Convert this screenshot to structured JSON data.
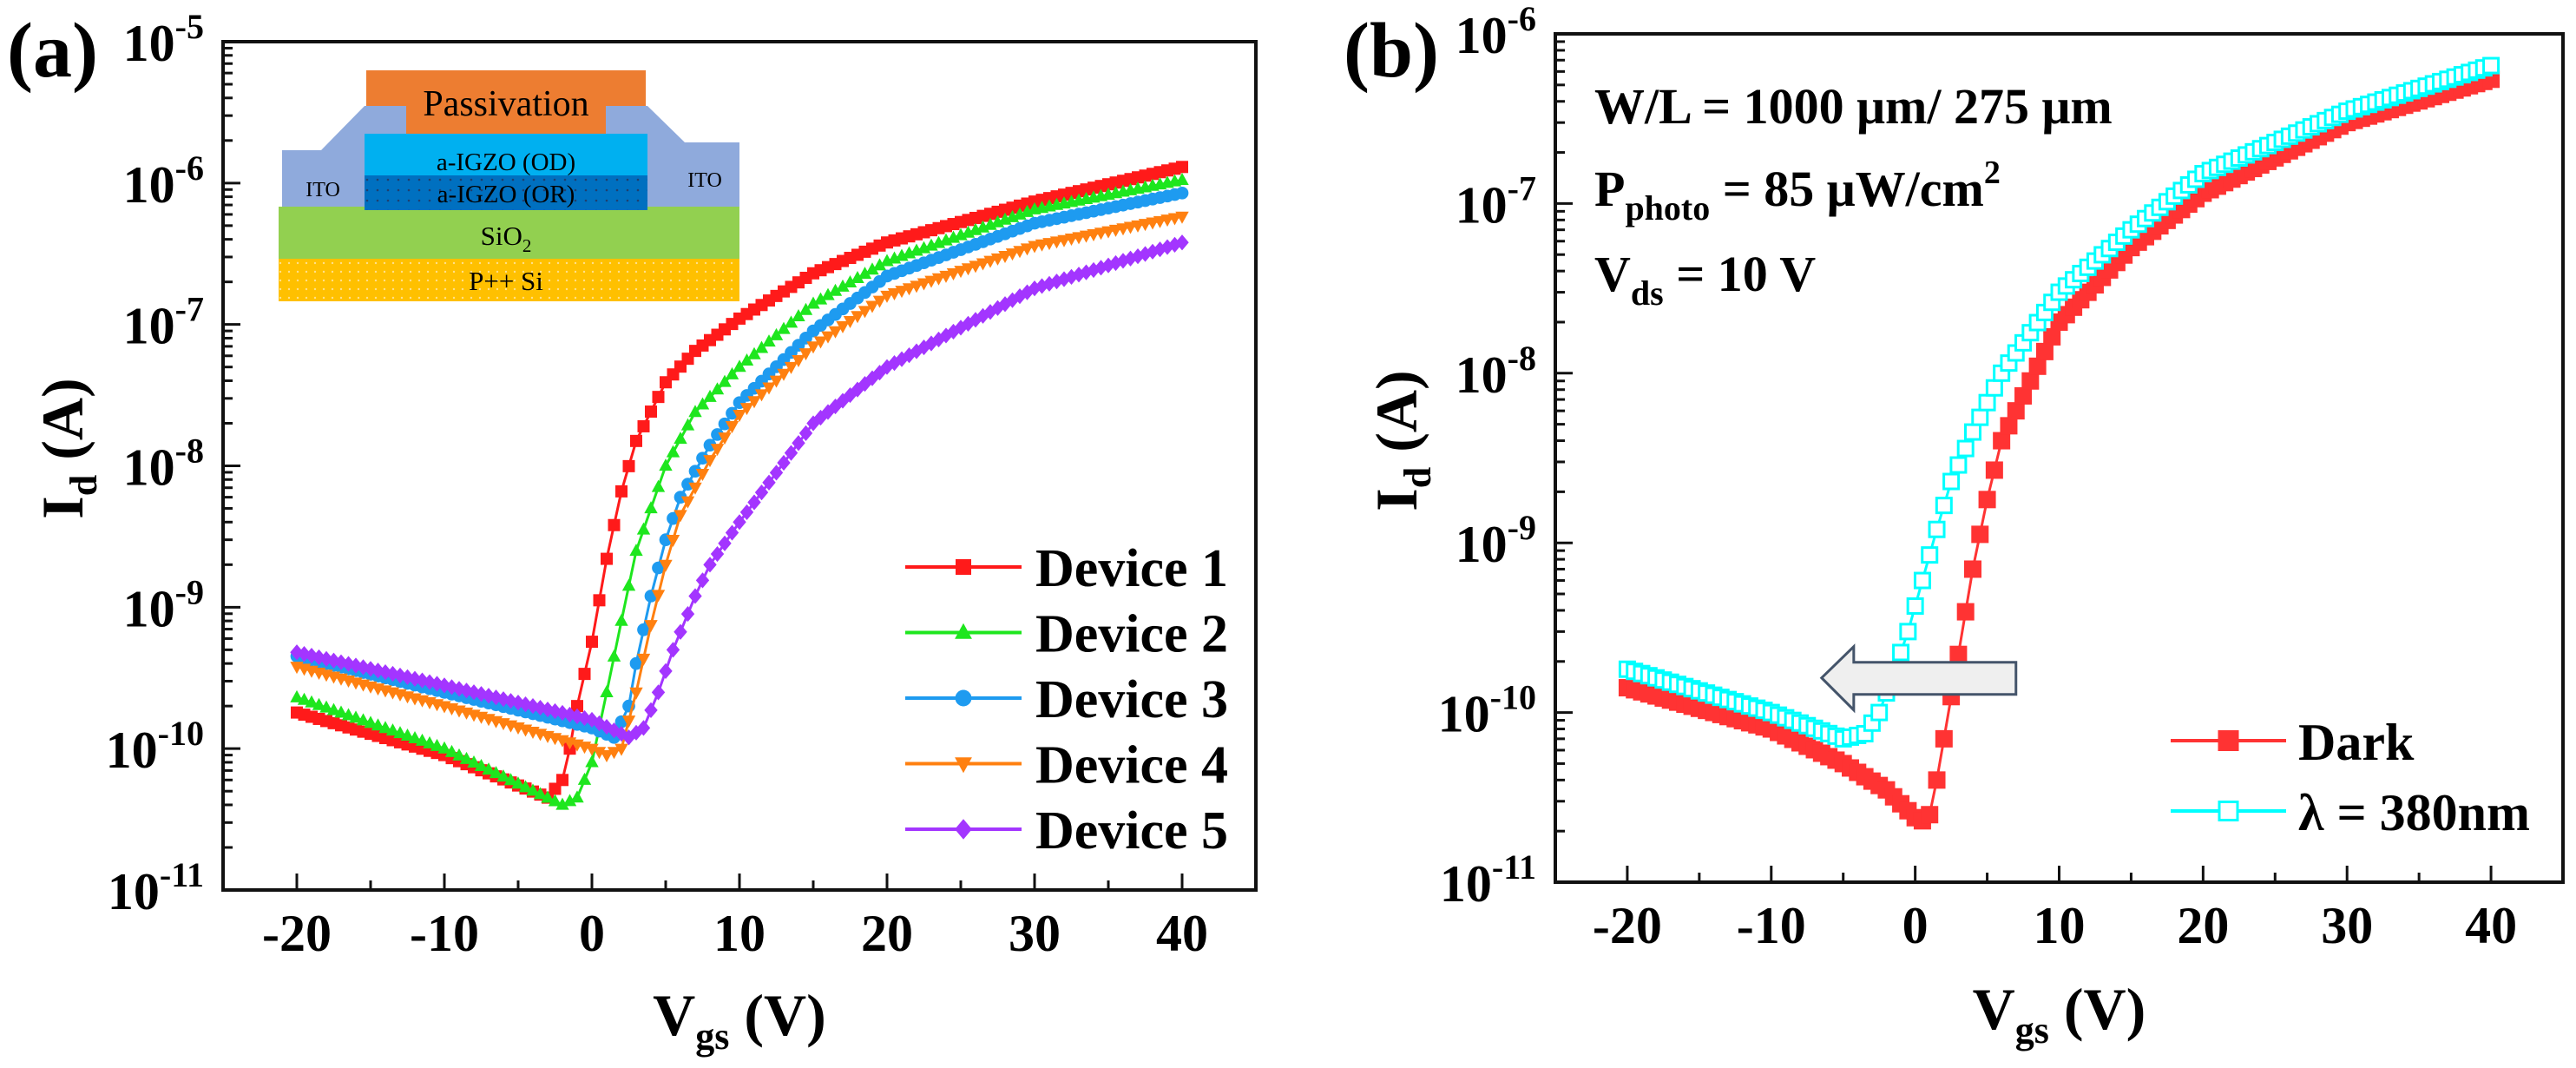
{
  "chart_data": [
    {
      "type": "scatter",
      "panel_label": "(a)",
      "title": "",
      "xlabel": {
        "main": "V",
        "sub": "gs",
        "rest": " (V)"
      },
      "ylabel": {
        "main": "I",
        "sub": "d",
        "rest": " (A)"
      },
      "xscale": "linear",
      "yscale": "log",
      "xlim": [
        -25,
        45
      ],
      "ylim_exponents": [
        -11,
        -5
      ],
      "xticks": [
        -20,
        -10,
        0,
        10,
        20,
        30,
        40
      ],
      "xtick_labels": [
        "-20",
        "-10",
        "0",
        "10",
        "20",
        "30",
        "40"
      ],
      "ytick_labels": [
        {
          "base": "10",
          "exp": "-11"
        },
        {
          "base": "10",
          "exp": "-10"
        },
        {
          "base": "10",
          "exp": "-9"
        },
        {
          "base": "10",
          "exp": "-8"
        },
        {
          "base": "10",
          "exp": "-7"
        },
        {
          "base": "10",
          "exp": "-6"
        },
        {
          "base": "10",
          "exp": "-5"
        }
      ],
      "grid": false,
      "legend_position": "bottom-right",
      "sample_step_V": 0.5,
      "series": [
        {
          "name": "Device 1",
          "color": "#ff1a1a",
          "marker": "square",
          "points": [
            [
              -20,
              1.8e-10
            ],
            [
              -10,
              9e-11
            ],
            [
              -3,
              4.5e-11
            ],
            [
              -2,
              6e-11
            ],
            [
              -1.5,
              1e-10
            ],
            [
              -1,
              2e-10
            ],
            [
              0,
              5.7e-10
            ],
            [
              1,
              2.2e-09
            ],
            [
              2,
              6.6e-09
            ],
            [
              3,
              1.5e-08
            ],
            [
              5,
              3.9e-08
            ],
            [
              7,
              6.5e-08
            ],
            [
              10,
              1.1e-07
            ],
            [
              15,
              2.3e-07
            ],
            [
              20,
              3.8e-07
            ],
            [
              30,
              7.4e-07
            ],
            [
              40,
              1.3e-06
            ]
          ]
        },
        {
          "name": "Device 2",
          "color": "#1ee61e",
          "marker": "triangle-up",
          "points": [
            [
              -20,
              2.3e-10
            ],
            [
              -10,
              1e-10
            ],
            [
              -2,
              4e-11
            ],
            [
              -1,
              4.5e-11
            ],
            [
              0,
              8e-11
            ],
            [
              1,
              2.5e-10
            ],
            [
              2,
              8e-10
            ],
            [
              3,
              2.5e-09
            ],
            [
              5,
              1e-08
            ],
            [
              7,
              2.4e-08
            ],
            [
              10,
              5e-08
            ],
            [
              15,
              1.4e-07
            ],
            [
              20,
              2.8e-07
            ],
            [
              30,
              6.5e-07
            ],
            [
              40,
              1.05e-06
            ]
          ]
        },
        {
          "name": "Device 3",
          "color": "#1e9bf0",
          "marker": "circle",
          "points": [
            [
              -20,
              4.5e-10
            ],
            [
              -10,
              2.5e-10
            ],
            [
              0,
              1.4e-10
            ],
            [
              1.5,
              1.2e-10
            ],
            [
              2.5,
              2e-10
            ],
            [
              3,
              4e-10
            ],
            [
              4,
              1.2e-09
            ],
            [
              5,
              3e-09
            ],
            [
              6,
              6e-09
            ],
            [
              8,
              1.4e-08
            ],
            [
              10,
              2.8e-08
            ],
            [
              15,
              9e-08
            ],
            [
              20,
              2.2e-07
            ],
            [
              30,
              5.2e-07
            ],
            [
              40,
              8.5e-07
            ]
          ]
        },
        {
          "name": "Device 4",
          "color": "#ff8010",
          "marker": "triangle-down",
          "points": [
            [
              -20,
              3.8e-10
            ],
            [
              -10,
              2e-10
            ],
            [
              0,
              1e-10
            ],
            [
              1,
              9e-11
            ],
            [
              2,
              1e-10
            ],
            [
              3,
              2.5e-10
            ],
            [
              4,
              7.5e-10
            ],
            [
              5,
              2e-09
            ],
            [
              6,
              4.5e-09
            ],
            [
              8,
              1.1e-08
            ],
            [
              10,
              2.3e-08
            ],
            [
              15,
              7e-08
            ],
            [
              20,
              1.6e-07
            ],
            [
              30,
              3.6e-07
            ],
            [
              40,
              5.8e-07
            ]
          ]
        },
        {
          "name": "Device 5",
          "color": "#a335ff",
          "marker": "diamond",
          "points": [
            [
              -20,
              4.8e-10
            ],
            [
              -10,
              2.8e-10
            ],
            [
              0,
              1.6e-10
            ],
            [
              2.5,
              1.2e-10
            ],
            [
              3.5,
              1.4e-10
            ],
            [
              4.5,
              2.5e-10
            ],
            [
              5.5,
              5e-10
            ],
            [
              7,
              1.2e-09
            ],
            [
              8,
              2e-09
            ],
            [
              10,
              4e-09
            ],
            [
              15,
              2e-08
            ],
            [
              20,
              5e-08
            ],
            [
              30,
              1.8e-07
            ],
            [
              40,
              3.8e-07
            ]
          ]
        }
      ],
      "inset": {
        "layers": [
          {
            "name": "Passivation",
            "color": "#ed7d31"
          },
          {
            "name": "ITO",
            "color": "#8faadc"
          },
          {
            "name": "a-IGZO (OD)",
            "color": "#00b0f0"
          },
          {
            "name": "a-IGZO (OR)",
            "color": "#0070c0"
          },
          {
            "name": "SiO",
            "sub": "2",
            "color": "#92d050"
          },
          {
            "name": "P++ Si",
            "color": "#ffc000"
          }
        ]
      }
    },
    {
      "type": "scatter",
      "panel_label": "(b)",
      "title": "",
      "xlabel": {
        "main": "V",
        "sub": "gs",
        "rest": " (V)"
      },
      "ylabel": {
        "main": "I",
        "sub": "d",
        "rest": " (A)"
      },
      "xscale": "linear",
      "yscale": "log",
      "xlim": [
        -25,
        45
      ],
      "ylim_exponents": [
        -11,
        -6
      ],
      "xticks": [
        -20,
        -10,
        0,
        10,
        20,
        30,
        40
      ],
      "xtick_labels": [
        "-20",
        "-10",
        "0",
        "10",
        "20",
        "30",
        "40"
      ],
      "ytick_labels": [
        {
          "base": "10",
          "exp": "-11"
        },
        {
          "base": "10",
          "exp": "-10"
        },
        {
          "base": "10",
          "exp": "-9"
        },
        {
          "base": "10",
          "exp": "-8"
        },
        {
          "base": "10",
          "exp": "-7"
        },
        {
          "base": "10",
          "exp": "-6"
        }
      ],
      "grid": false,
      "legend_position": "bottom-right",
      "sample_step_V": 0.5,
      "annotations": [
        {
          "main": "W/L = 1000 μm/ 275 μm"
        },
        {
          "main": "P",
          "sub": "photo",
          "rest": " = 85 μW/cm",
          "sup": "2"
        },
        {
          "main": "V",
          "sub": "ds",
          "rest": " = 10 V"
        }
      ],
      "arrow": {
        "direction": "left",
        "from_V": 7,
        "to_V": -6.5,
        "at_Id": 1.6e-10,
        "fill": "#efefef",
        "stroke": "#44546a"
      },
      "series": [
        {
          "name": "Dark",
          "color": "#ff3333",
          "marker": "square-filled",
          "points": [
            [
              -20,
              1.4e-10
            ],
            [
              -10,
              8e-11
            ],
            [
              -5,
              5e-11
            ],
            [
              -2,
              3.5e-11
            ],
            [
              0,
              2.4e-11
            ],
            [
              0.5,
              2.3e-11
            ],
            [
              1,
              2.5e-11
            ],
            [
              1.5,
              4e-11
            ],
            [
              2,
              7e-11
            ],
            [
              3,
              2.2e-10
            ],
            [
              4,
              7e-10
            ],
            [
              5,
              1.8e-09
            ],
            [
              6,
              4e-09
            ],
            [
              8,
              9e-09
            ],
            [
              10,
              2e-08
            ],
            [
              15,
              5.5e-08
            ],
            [
              20,
              1.15e-07
            ],
            [
              30,
              3e-07
            ],
            [
              40,
              5.4e-07
            ]
          ]
        },
        {
          "name": "λ = 380nm",
          "color": "#00ffff",
          "marker": "square-open",
          "points": [
            [
              -20,
              1.8e-10
            ],
            [
              -10,
              1e-10
            ],
            [
              -5,
              7e-11
            ],
            [
              -3.5,
              7.5e-11
            ],
            [
              -2.5,
              1e-10
            ],
            [
              -1.5,
              1.7e-10
            ],
            [
              -0.5,
              3e-10
            ],
            [
              0.5,
              6e-10
            ],
            [
              1.5,
              1.2e-09
            ],
            [
              2.5,
              2.3e-09
            ],
            [
              4,
              4.5e-09
            ],
            [
              6,
              1e-08
            ],
            [
              10,
              3e-08
            ],
            [
              15,
              7e-08
            ],
            [
              20,
              1.5e-07
            ],
            [
              30,
              3.5e-07
            ],
            [
              40,
              6.5e-07
            ]
          ]
        }
      ]
    }
  ]
}
